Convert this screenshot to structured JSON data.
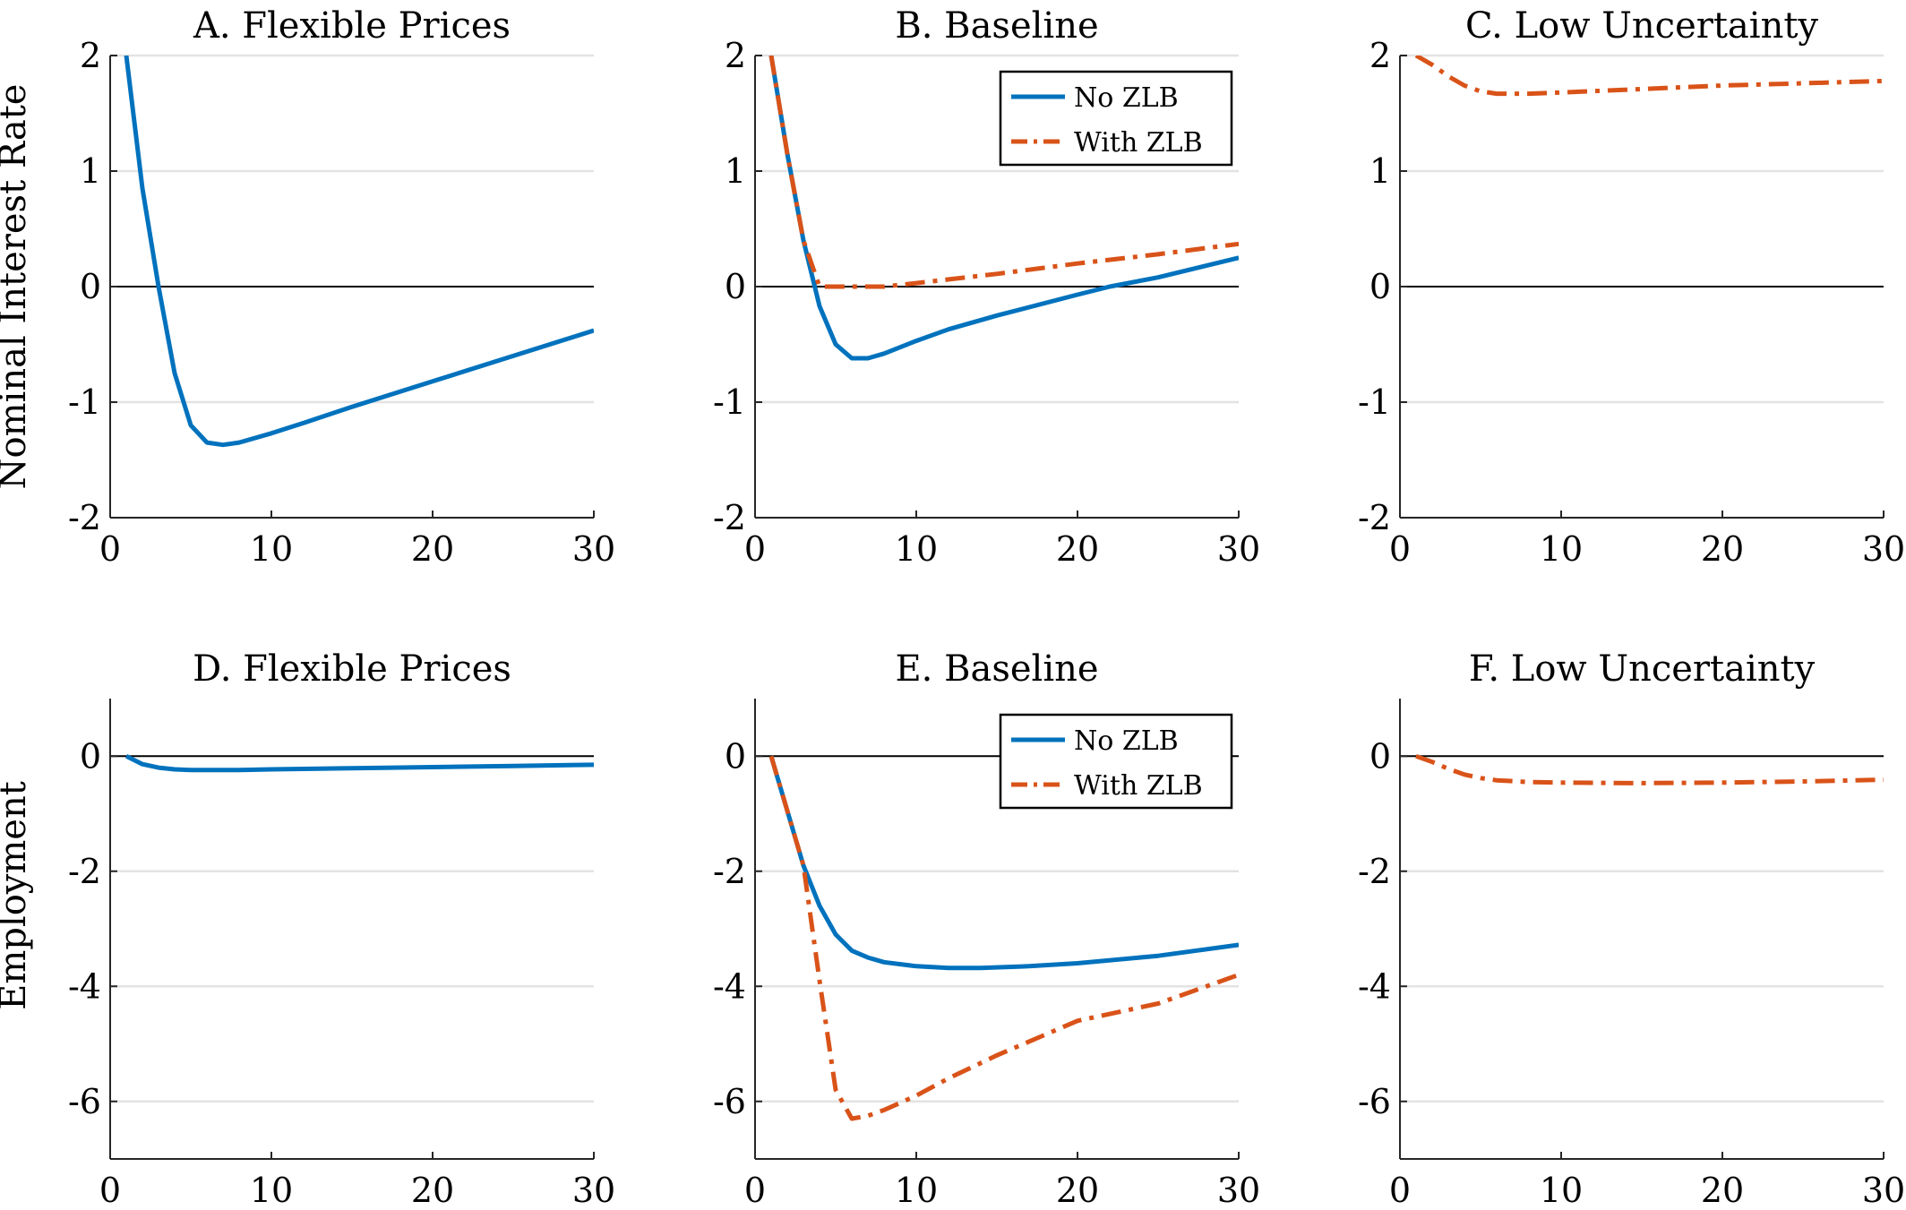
{
  "figure": {
    "row_labels": [
      "Nominal Interest Rate",
      "Employment"
    ]
  },
  "colors": {
    "no_zlb": "#0072BD",
    "with_zlb": "#D95319",
    "grid": "#E3E3E3",
    "zero_line": "#000000"
  },
  "chart_data": [
    {
      "id": "A",
      "type": "line",
      "title": "A. Flexible Prices",
      "xlim": [
        0,
        30
      ],
      "ylim": [
        -2,
        2
      ],
      "xticks": [
        0,
        10,
        20,
        30
      ],
      "yticks": [
        -2,
        -1,
        0,
        1,
        2
      ],
      "ylabel": "Nominal Interest Rate",
      "grid": "horizontal",
      "legend": null,
      "series": [
        {
          "style": "solid",
          "color": "no_zlb",
          "x": [
            1,
            2,
            3,
            4,
            5,
            6,
            7,
            8,
            10,
            12,
            15,
            20,
            25,
            30
          ],
          "y": [
            2.0,
            0.85,
            0.0,
            -0.75,
            -1.2,
            -1.35,
            -1.37,
            -1.35,
            -1.27,
            -1.18,
            -1.04,
            -0.82,
            -0.6,
            -0.38
          ]
        }
      ]
    },
    {
      "id": "B",
      "type": "line",
      "title": "B. Baseline",
      "xlim": [
        0,
        30
      ],
      "ylim": [
        -2,
        2
      ],
      "xticks": [
        0,
        10,
        20,
        30
      ],
      "yticks": [
        -2,
        -1,
        0,
        1,
        2
      ],
      "ylabel": "",
      "grid": "horizontal",
      "legend": "top-right",
      "series": [
        {
          "name": "No ZLB",
          "style": "solid",
          "color": "no_zlb",
          "x": [
            1,
            2,
            3,
            4,
            5,
            6,
            7,
            8,
            10,
            12,
            15,
            20,
            22,
            25,
            30
          ],
          "y": [
            2.0,
            1.15,
            0.4,
            -0.17,
            -0.5,
            -0.62,
            -0.62,
            -0.58,
            -0.47,
            -0.37,
            -0.25,
            -0.07,
            0.0,
            0.08,
            0.25
          ]
        },
        {
          "name": "With ZLB",
          "style": "dashdot",
          "color": "with_zlb",
          "x": [
            1,
            2,
            3,
            4,
            5,
            6,
            8,
            10,
            15,
            20,
            25,
            30
          ],
          "y": [
            2.0,
            1.15,
            0.4,
            0.0,
            0.0,
            0.0,
            0.0,
            0.03,
            0.11,
            0.2,
            0.28,
            0.37
          ]
        }
      ]
    },
    {
      "id": "C",
      "type": "line",
      "title": "C. Low Uncertainty",
      "xlim": [
        0,
        30
      ],
      "ylim": [
        -2,
        2
      ],
      "xticks": [
        0,
        10,
        20,
        30
      ],
      "yticks": [
        -2,
        -1,
        0,
        1,
        2
      ],
      "ylabel": "",
      "grid": "horizontal",
      "legend": null,
      "series": [
        {
          "style": "dashdot",
          "color": "with_zlb",
          "x": [
            1,
            2,
            3,
            4,
            5,
            6,
            8,
            10,
            15,
            20,
            25,
            30
          ],
          "y": [
            2.0,
            1.92,
            1.82,
            1.74,
            1.69,
            1.67,
            1.67,
            1.68,
            1.71,
            1.74,
            1.76,
            1.78
          ]
        }
      ]
    },
    {
      "id": "D",
      "type": "line",
      "title": "D. Flexible Prices",
      "xlim": [
        0,
        30
      ],
      "ylim": [
        -7,
        1
      ],
      "xticks": [
        0,
        10,
        20,
        30
      ],
      "yticks": [
        -6,
        -4,
        -2,
        0
      ],
      "ylabel": "Employment",
      "grid": "horizontal",
      "legend": null,
      "series": [
        {
          "style": "solid",
          "color": "no_zlb",
          "x": [
            1,
            2,
            3,
            4,
            5,
            6,
            8,
            10,
            15,
            20,
            25,
            30
          ],
          "y": [
            0.0,
            -0.14,
            -0.2,
            -0.23,
            -0.24,
            -0.24,
            -0.24,
            -0.23,
            -0.21,
            -0.19,
            -0.17,
            -0.15
          ]
        }
      ]
    },
    {
      "id": "E",
      "type": "line",
      "title": "E. Baseline",
      "xlim": [
        0,
        30
      ],
      "ylim": [
        -7,
        1
      ],
      "xticks": [
        0,
        10,
        20,
        30
      ],
      "yticks": [
        -6,
        -4,
        -2,
        0
      ],
      "ylabel": "",
      "grid": "horizontal",
      "legend": "top-right",
      "series": [
        {
          "name": "No ZLB",
          "style": "solid",
          "color": "no_zlb",
          "x": [
            1,
            2,
            3,
            4,
            5,
            6,
            7,
            8,
            10,
            12,
            14,
            17,
            20,
            25,
            30
          ],
          "y": [
            0.0,
            -0.95,
            -1.9,
            -2.6,
            -3.1,
            -3.38,
            -3.5,
            -3.58,
            -3.65,
            -3.68,
            -3.68,
            -3.65,
            -3.6,
            -3.47,
            -3.28
          ]
        },
        {
          "name": "With ZLB",
          "style": "dashdot",
          "color": "with_zlb",
          "x": [
            1,
            2,
            3,
            4,
            5,
            6,
            7,
            8,
            10,
            12,
            15,
            20,
            25,
            30
          ],
          "y": [
            0.0,
            -0.95,
            -1.9,
            -3.9,
            -5.8,
            -6.3,
            -6.25,
            -6.15,
            -5.9,
            -5.6,
            -5.2,
            -4.6,
            -4.3,
            -3.8
          ]
        }
      ]
    },
    {
      "id": "F",
      "type": "line",
      "title": "F. Low Uncertainty",
      "xlim": [
        0,
        30
      ],
      "ylim": [
        -7,
        1
      ],
      "xticks": [
        0,
        10,
        20,
        30
      ],
      "yticks": [
        -6,
        -4,
        -2,
        0
      ],
      "ylabel": "",
      "grid": "horizontal",
      "legend": null,
      "series": [
        {
          "style": "dashdot",
          "color": "with_zlb",
          "x": [
            1,
            2,
            3,
            4,
            5,
            6,
            8,
            10,
            15,
            20,
            25,
            30
          ],
          "y": [
            0.0,
            -0.1,
            -0.22,
            -0.32,
            -0.38,
            -0.42,
            -0.45,
            -0.46,
            -0.47,
            -0.46,
            -0.44,
            -0.41
          ]
        }
      ]
    }
  ]
}
